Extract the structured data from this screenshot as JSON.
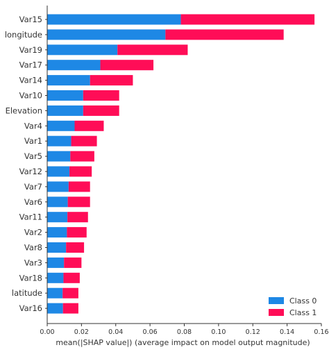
{
  "chart_data": {
    "type": "bar",
    "orientation": "horizontal",
    "stacked": true,
    "title": "",
    "xlabel": "mean(|SHAP value|) (average impact on model output magnitude)",
    "ylabel": "",
    "xlim": [
      0,
      0.16
    ],
    "x_ticks": [
      "0.00",
      "0.02",
      "0.04",
      "0.06",
      "0.08",
      "0.10",
      "0.12",
      "0.14",
      "0.16"
    ],
    "x_tick_values": [
      0,
      0.02,
      0.04,
      0.06,
      0.08,
      0.1,
      0.12,
      0.14,
      0.16
    ],
    "grid": false,
    "legend_position": "bottom-right",
    "categories": [
      "Var15",
      "longitude",
      "Var19",
      "Var17",
      "Var14",
      "Var10",
      "Elevation",
      "Var4",
      "Var1",
      "Var5",
      "Var12",
      "Var7",
      "Var6",
      "Var11",
      "Var2",
      "Var8",
      "Var3",
      "Var18",
      "latitude",
      "Var16"
    ],
    "series": [
      {
        "name": "Class 0",
        "color": "#1e88e5",
        "values": [
          0.078,
          0.069,
          0.041,
          0.031,
          0.025,
          0.021,
          0.021,
          0.016,
          0.014,
          0.0135,
          0.013,
          0.0125,
          0.012,
          0.0118,
          0.0115,
          0.011,
          0.0098,
          0.0095,
          0.009,
          0.0092
        ]
      },
      {
        "name": "Class 1",
        "color": "#ff0d57",
        "values": [
          0.078,
          0.069,
          0.041,
          0.031,
          0.025,
          0.021,
          0.021,
          0.017,
          0.015,
          0.014,
          0.013,
          0.0125,
          0.013,
          0.012,
          0.0115,
          0.0105,
          0.0102,
          0.0095,
          0.0092,
          0.009
        ]
      }
    ]
  }
}
